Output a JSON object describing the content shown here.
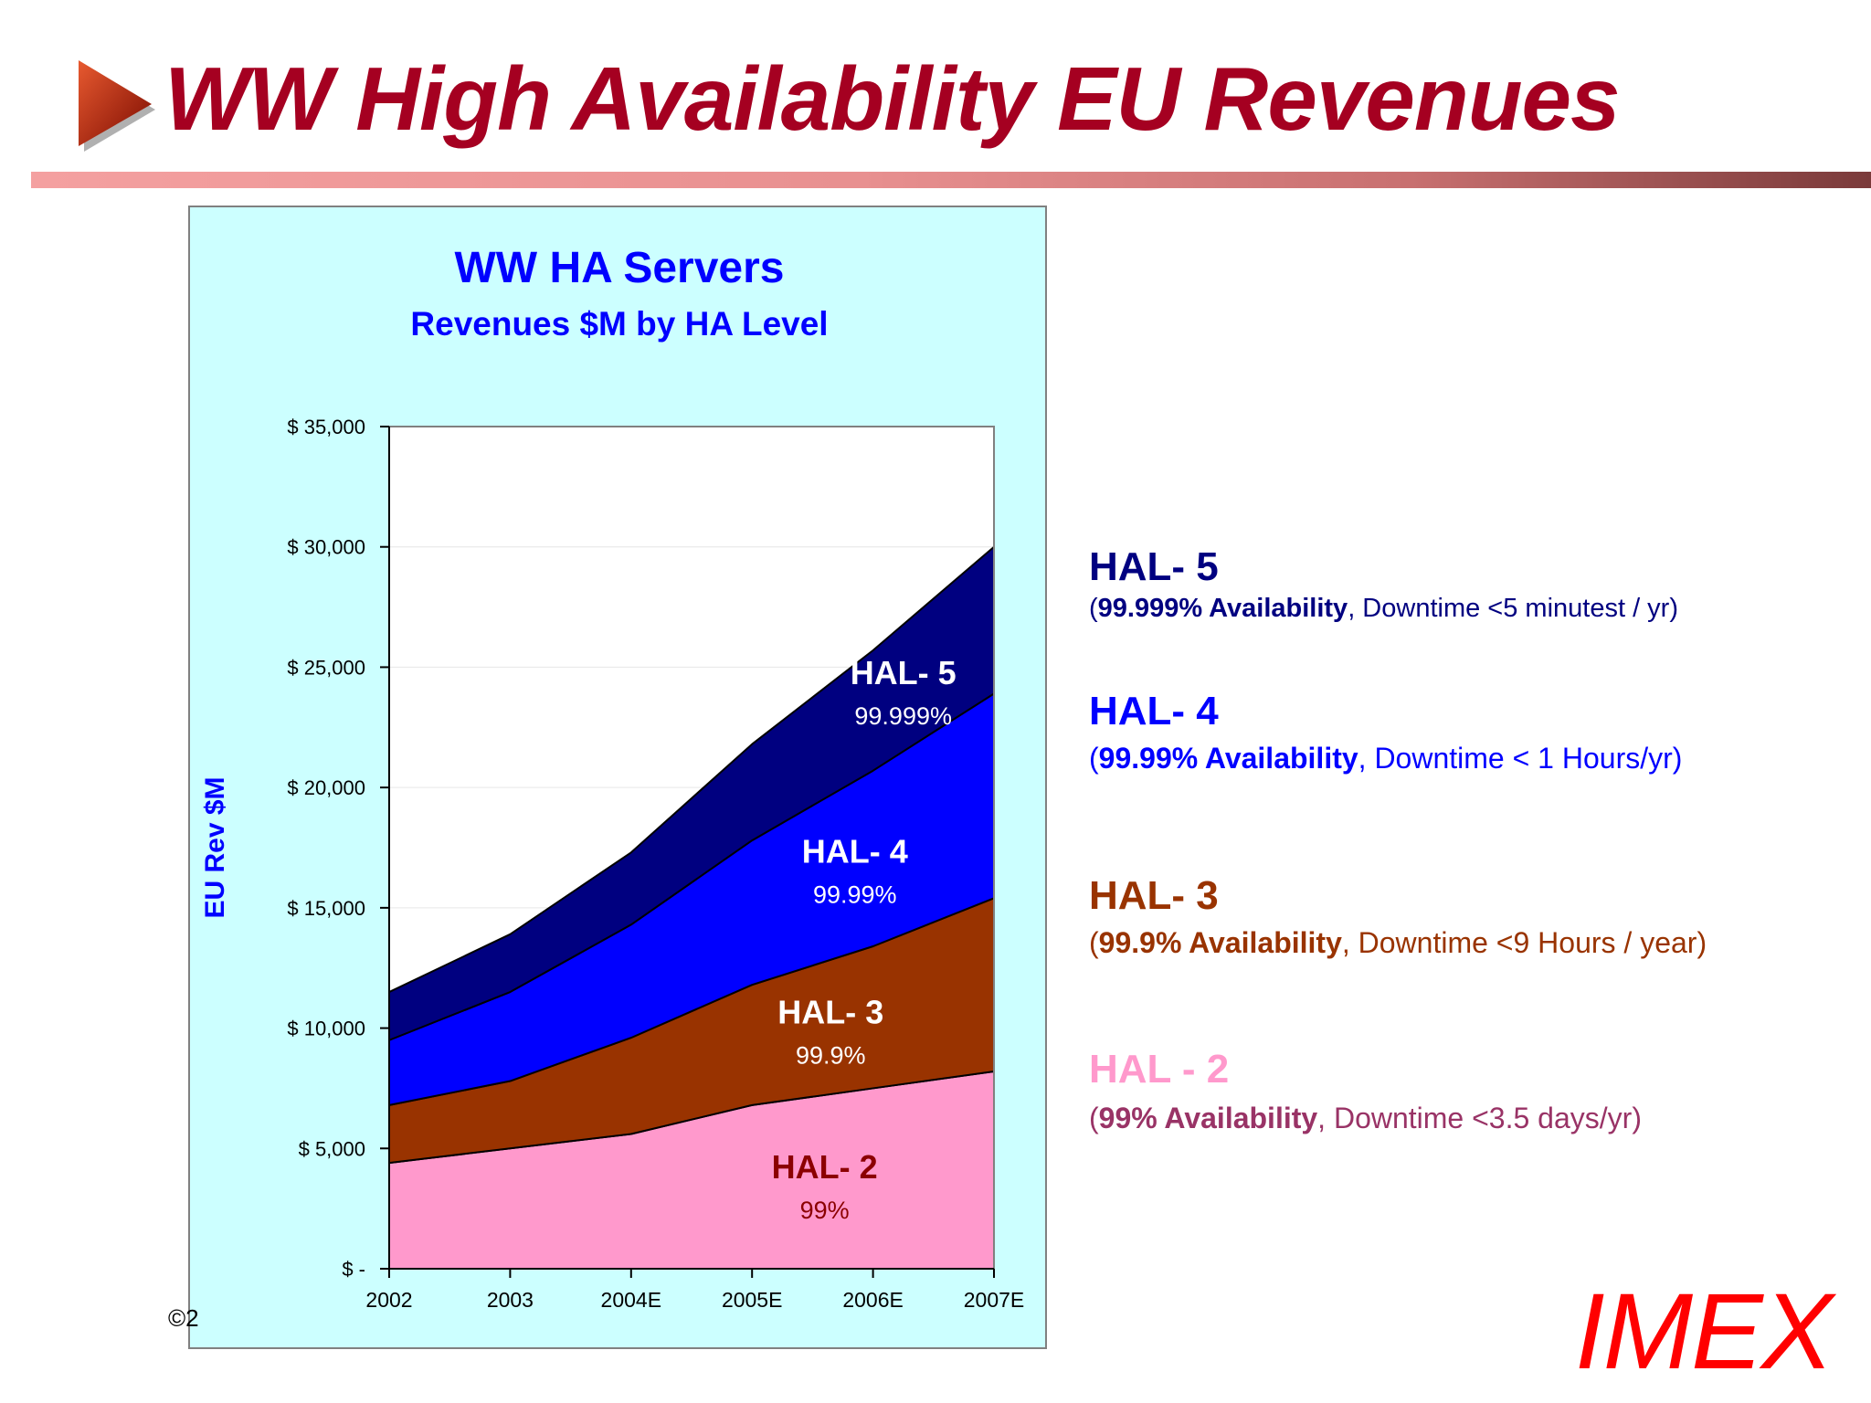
{
  "slide": {
    "title": "WW High Availability EU Revenues",
    "copyright": "©2",
    "logo": "IMEX"
  },
  "colors": {
    "title": "#a50021",
    "panel_bg": "#ccffff",
    "hal2": "#ff99cc",
    "hal3": "#993300",
    "hal4": "#0000ff",
    "hal5": "#000080",
    "chart_title": "#0000ff"
  },
  "legend": [
    {
      "title": "HAL- 5",
      "bold": "99.999% Availability",
      "rest": ", Downtime <5 minutest / yr)",
      "color": "#000080",
      "desc_color": "#000080"
    },
    {
      "title": "HAL- 4",
      "bold": "99.99% Availability",
      "rest": ", Downtime < 1 Hours/yr)",
      "color": "#0000ff",
      "desc_color": "#0000ff"
    },
    {
      "title": "HAL- 3",
      "bold": "99.9% Availability",
      "rest": ", Downtime <9 Hours / year)",
      "color": "#993300",
      "desc_color": "#993300"
    },
    {
      "title": "HAL - 2",
      "bold": "99% Availability",
      "rest": ", Downtime <3.5 days/yr)",
      "color": "#ff99cc",
      "desc_color": "#993366"
    }
  ],
  "chart_data": {
    "type": "area",
    "stacked": true,
    "title": "WW HA Servers",
    "subtitle": "Revenues $M by HA Level",
    "xlabel": "",
    "ylabel": "EU Rev $M",
    "categories": [
      "2002",
      "2003",
      "2004E",
      "2005E",
      "2006E",
      "2007E"
    ],
    "ylim": [
      0,
      35000
    ],
    "yticks": [
      0,
      5000,
      10000,
      15000,
      20000,
      25000,
      30000,
      35000
    ],
    "ytick_labels": [
      "$ -",
      "$ 5,000",
      "$ 10,000",
      "$ 15,000",
      "$ 20,000",
      "$ 25,000",
      "$ 30,000",
      "$ 35,000"
    ],
    "grid": true,
    "series": [
      {
        "name": "HAL- 2",
        "sublabel": "99%",
        "values": [
          4400,
          5000,
          5600,
          6800,
          7500,
          8200
        ],
        "color": "#ff99cc",
        "label_color": "#8b0000"
      },
      {
        "name": "HAL- 3",
        "sublabel": "99.9%",
        "values": [
          2400,
          2800,
          4000,
          5000,
          5900,
          7200
        ],
        "color": "#993300",
        "label_color": "#ffffff"
      },
      {
        "name": "HAL- 4",
        "sublabel": "99.99%",
        "values": [
          2700,
          3700,
          4700,
          6000,
          7300,
          8500
        ],
        "color": "#0000ff",
        "label_color": "#ffffff"
      },
      {
        "name": "HAL- 5",
        "sublabel": "99.999%",
        "values": [
          2000,
          2400,
          3000,
          4000,
          5000,
          6100
        ],
        "color": "#000080",
        "label_color": "#ffffff"
      }
    ]
  }
}
